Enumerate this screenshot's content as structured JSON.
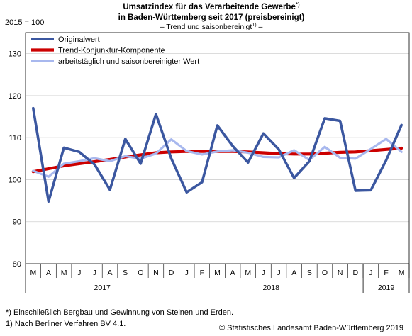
{
  "header": {
    "title_line1": "Umsatzindex für das Verarbeitende Gewerbe",
    "title_line1_sup": "*)",
    "title_line2": "in Baden-Württemberg seit 2017 (preisbereinigt)",
    "subtitle_pre": "– Trend und saisonbereinigt",
    "subtitle_sup": "1)",
    "subtitle_post": " –"
  },
  "footnotes": {
    "note_star": "*) Einschließlich Bergbau und Gewinnung von Steinen und Erden.",
    "note_1": "1) Nach Berliner Verfahren BV 4.1.",
    "copyright": "© Statistisches Landesamt Baden-Württemberg 2019"
  },
  "colors": {
    "original": "#3b57a0",
    "trend": "#cc0000",
    "seasonal": "#a8b8ee",
    "grid": "#d0d0d0"
  },
  "chart_data": {
    "type": "line",
    "unit_label": "2015 = 100",
    "ylim": [
      80,
      135
    ],
    "yticks": [
      80,
      90,
      100,
      110,
      120,
      130
    ],
    "grid": true,
    "legend_position": "top-left",
    "categories": [
      "M",
      "A",
      "M",
      "J",
      "J",
      "A",
      "S",
      "O",
      "N",
      "D",
      "J",
      "F",
      "M",
      "A",
      "M",
      "J",
      "J",
      "A",
      "S",
      "O",
      "N",
      "D",
      "J",
      "F",
      "M"
    ],
    "years": [
      {
        "label": "2017",
        "span": 10
      },
      {
        "label": "2018",
        "span": 12
      },
      {
        "label": "2019",
        "span": 3
      }
    ],
    "series": [
      {
        "name": "Originalwert",
        "color_key": "original",
        "values": [
          117.0,
          94.8,
          107.6,
          106.6,
          103.6,
          97.6,
          109.7,
          103.8,
          115.6,
          105.0,
          97.0,
          99.4,
          112.9,
          108.0,
          104.1,
          111.0,
          107.2,
          100.4,
          104.4,
          114.6,
          114.0,
          97.4,
          97.5,
          104.6,
          113.0
        ]
      },
      {
        "name": "Trend-Konjunktur-Komponente",
        "color_key": "trend",
        "values": [
          101.9,
          102.6,
          103.3,
          103.8,
          104.3,
          104.8,
          105.4,
          105.9,
          106.4,
          106.6,
          106.7,
          106.7,
          106.7,
          106.7,
          106.6,
          106.4,
          106.2,
          106.1,
          106.1,
          106.3,
          106.5,
          106.6,
          106.9,
          107.2,
          107.5
        ]
      },
      {
        "name": "arbeitstäglich und saisonbereinigter Wert",
        "color_key": "seasonal",
        "values": [
          102.1,
          100.7,
          103.8,
          104.4,
          105.1,
          104.4,
          105.6,
          105.0,
          106.2,
          109.6,
          106.8,
          106.0,
          106.7,
          107.0,
          106.4,
          105.4,
          105.3,
          107.0,
          104.7,
          107.8,
          105.2,
          105.0,
          107.3,
          109.7,
          106.6
        ]
      }
    ]
  }
}
